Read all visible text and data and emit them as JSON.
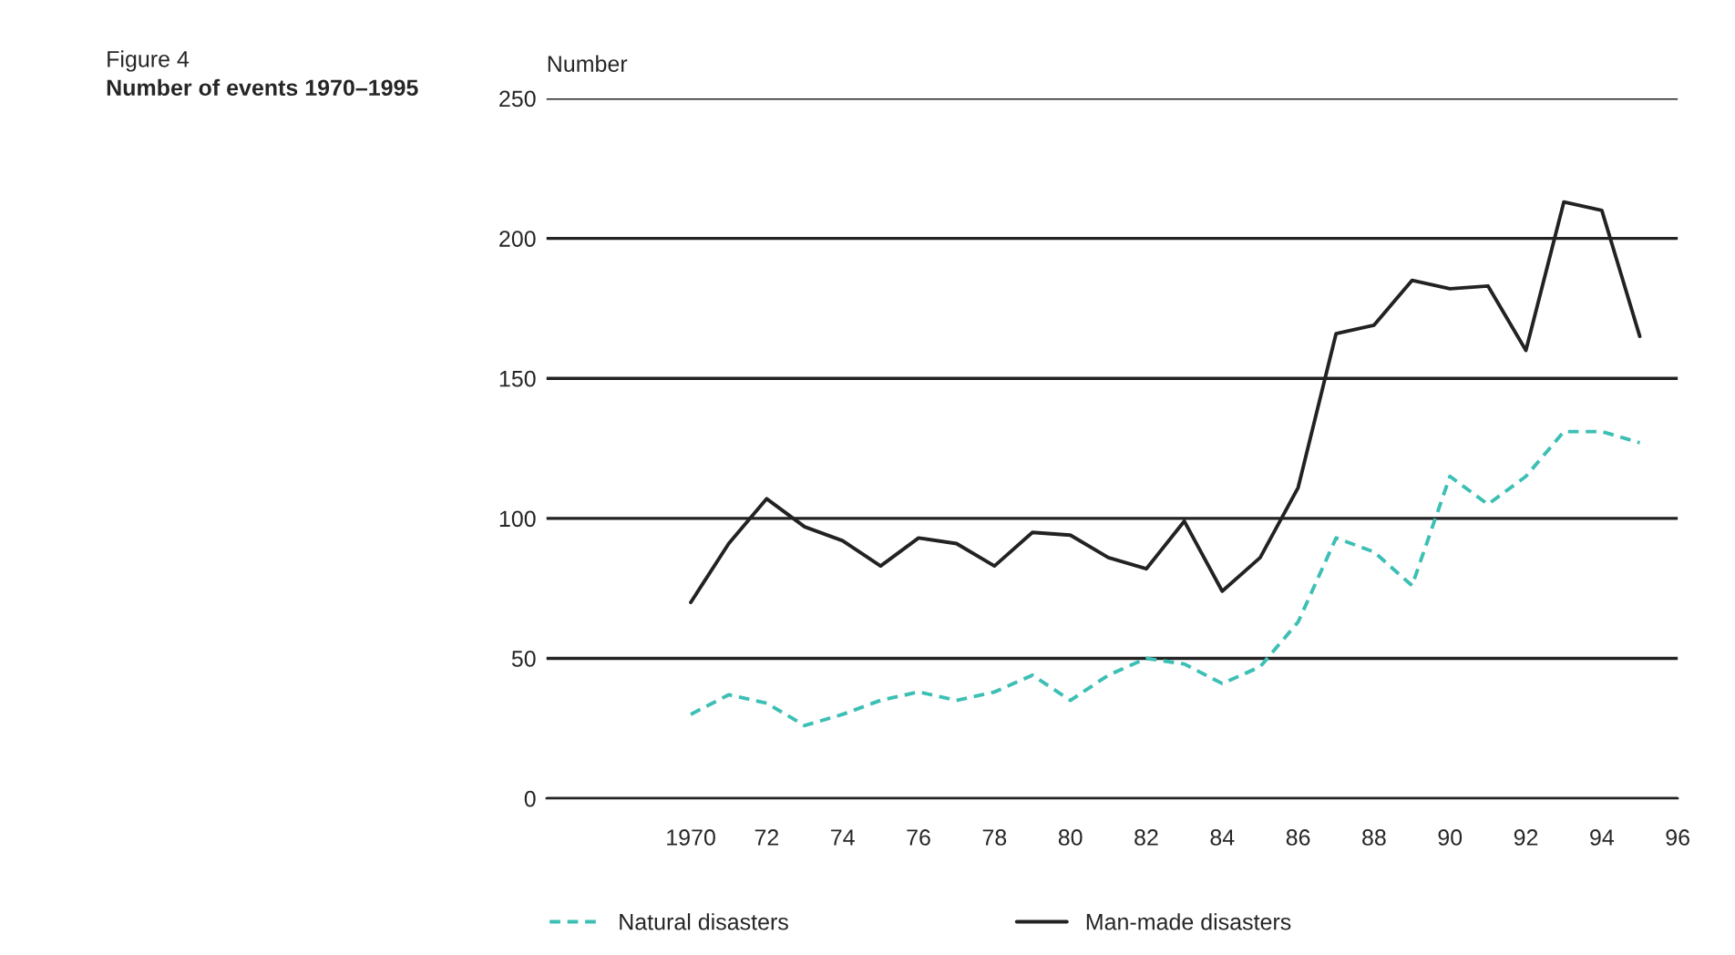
{
  "chart_data": {
    "type": "line",
    "title": "Figure 4",
    "subtitle": "Number of events 1970–1995",
    "ylabel": "Number",
    "x": [
      1970,
      1971,
      1972,
      1973,
      1974,
      1975,
      1976,
      1977,
      1978,
      1979,
      1980,
      1981,
      1982,
      1983,
      1984,
      1985,
      1986,
      1987,
      1988,
      1989,
      1990,
      1991,
      1992,
      1993,
      1994,
      1995
    ],
    "series": [
      {
        "name": "Natural disasters",
        "color": "#3cbfb4",
        "line_style": "dashed",
        "values": [
          30,
          37,
          34,
          26,
          30,
          35,
          38,
          35,
          38,
          44,
          35,
          44,
          50,
          48,
          41,
          47,
          63,
          93,
          88,
          76,
          115,
          105,
          115,
          131,
          131,
          127
        ]
      },
      {
        "name": "Man-made disasters",
        "color": "#222222",
        "line_style": "solid",
        "values": [
          70,
          91,
          107,
          97,
          92,
          83,
          93,
          91,
          83,
          95,
          94,
          86,
          82,
          99,
          74,
          86,
          111,
          166,
          169,
          185,
          182,
          183,
          160,
          213,
          210,
          165
        ]
      }
    ],
    "xlim": [
      1966.2,
      1996
    ],
    "xticks": [
      {
        "value": 1970,
        "label": "1970"
      },
      {
        "value": 1972,
        "label": "72"
      },
      {
        "value": 1974,
        "label": "74"
      },
      {
        "value": 1976,
        "label": "76"
      },
      {
        "value": 1978,
        "label": "78"
      },
      {
        "value": 1980,
        "label": "80"
      },
      {
        "value": 1982,
        "label": "82"
      },
      {
        "value": 1984,
        "label": "84"
      },
      {
        "value": 1986,
        "label": "86"
      },
      {
        "value": 1988,
        "label": "88"
      },
      {
        "value": 1990,
        "label": "90"
      },
      {
        "value": 1992,
        "label": "92"
      },
      {
        "value": 1994,
        "label": "94"
      },
      {
        "value": 1996,
        "label": "96"
      }
    ],
    "ylim": [
      0,
      250
    ],
    "yticks": [
      0,
      50,
      100,
      150,
      200,
      250
    ],
    "grid": "y",
    "legend": "bottom left",
    "marker": "none"
  }
}
